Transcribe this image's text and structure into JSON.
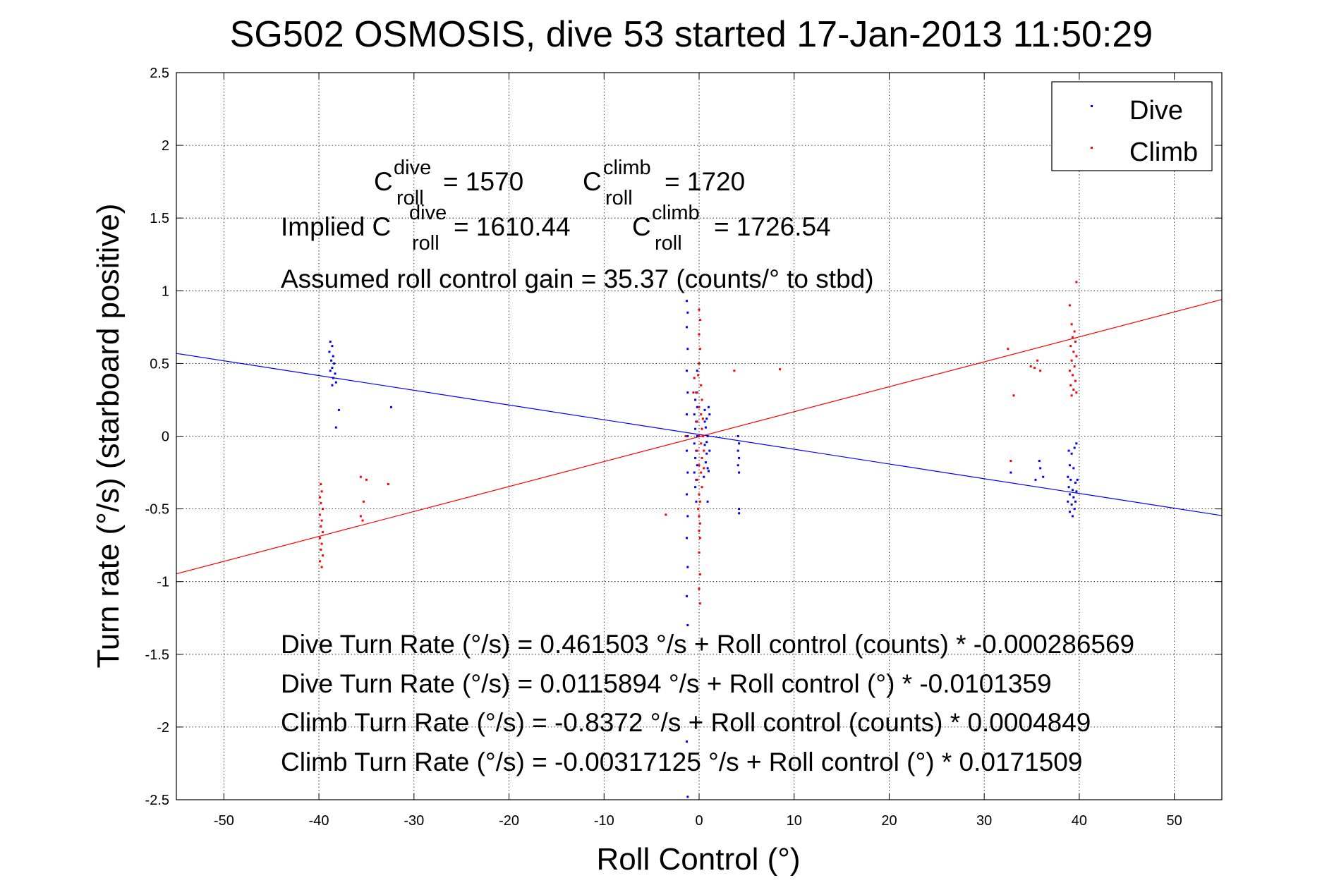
{
  "chart_data": {
    "type": "scatter",
    "title": "SG502 OSMOSIS, dive 53 started 17-Jan-2013 11:50:29",
    "xlabel": "Roll Control (°)",
    "ylabel": "Turn rate (°/s) (starboard positive)",
    "xlim": [
      -55,
      55
    ],
    "ylim": [
      -2.5,
      2.5
    ],
    "x_ticks": [
      -50,
      -40,
      -30,
      -20,
      -10,
      0,
      10,
      20,
      30,
      40,
      50
    ],
    "y_ticks": [
      -2.5,
      -2,
      -1.5,
      -1,
      -0.5,
      0,
      0.5,
      1,
      1.5,
      2,
      2.5
    ],
    "x_tick_labels": [
      "-50",
      "-40",
      "-30",
      "-20",
      "-10",
      "0",
      "10",
      "20",
      "30",
      "40",
      "50"
    ],
    "y_tick_labels": [
      "-2.5",
      "-2",
      "-1.5",
      "-1",
      "-0.5",
      "0",
      "0.5",
      "1",
      "1.5",
      "2",
      "2.5"
    ],
    "grid": true,
    "legend_position": "top-right",
    "series": [
      {
        "name": "Dive",
        "color": "#0000ff",
        "marker": "point",
        "points": [
          [
            -38.8,
            0.65
          ],
          [
            -38.6,
            0.62
          ],
          [
            -38.9,
            0.58
          ],
          [
            -38.5,
            0.55
          ],
          [
            -38.7,
            0.52
          ],
          [
            -38.4,
            0.5
          ],
          [
            -38.6,
            0.47
          ],
          [
            -38.8,
            0.45
          ],
          [
            -38.3,
            0.43
          ],
          [
            -38.5,
            0.4
          ],
          [
            -38.2,
            0.37
          ],
          [
            -38.6,
            0.35
          ],
          [
            -37.9,
            0.18
          ],
          [
            -38.2,
            0.06
          ],
          [
            -32.4,
            0.2
          ],
          [
            -1.3,
            0.93
          ],
          [
            -1.2,
            0.85
          ],
          [
            -1.3,
            0.75
          ],
          [
            -1.2,
            0.6
          ],
          [
            -1.3,
            0.45
          ],
          [
            -1.2,
            0.3
          ],
          [
            -1.3,
            0.15
          ],
          [
            -1.2,
            0.0
          ],
          [
            -1.3,
            -0.1
          ],
          [
            -1.2,
            -0.25
          ],
          [
            -1.3,
            -0.4
          ],
          [
            -1.2,
            -0.55
          ],
          [
            -1.3,
            -0.7
          ],
          [
            -1.2,
            -0.9
          ],
          [
            -1.3,
            -1.1
          ],
          [
            -1.2,
            -1.3
          ],
          [
            -1.3,
            -2.1
          ],
          [
            -1.2,
            -2.48
          ],
          [
            -0.3,
            0.3
          ],
          [
            -0.4,
            0.25
          ],
          [
            -0.2,
            0.2
          ],
          [
            -0.5,
            0.15
          ],
          [
            -0.3,
            0.1
          ],
          [
            -0.4,
            0.05
          ],
          [
            -0.2,
            0.0
          ],
          [
            -0.5,
            -0.05
          ],
          [
            -0.3,
            -0.1
          ],
          [
            -0.4,
            -0.15
          ],
          [
            -0.2,
            -0.2
          ],
          [
            -0.5,
            -0.25
          ],
          [
            -0.3,
            -0.3
          ],
          [
            -0.4,
            -0.35
          ],
          [
            -0.2,
            0.45
          ],
          [
            -0.3,
            -0.45
          ],
          [
            0.6,
            0.18
          ],
          [
            0.8,
            0.12
          ],
          [
            0.7,
            0.06
          ],
          [
            0.9,
            0.0
          ],
          [
            0.6,
            -0.06
          ],
          [
            0.8,
            -0.12
          ],
          [
            0.7,
            -0.18
          ],
          [
            0.9,
            -0.22
          ],
          [
            0.6,
            0.1
          ],
          [
            0.8,
            -0.04
          ],
          [
            1.0,
            0.2
          ],
          [
            1.0,
            -0.24
          ],
          [
            1.1,
            0.15
          ],
          [
            1.1,
            -0.1
          ],
          [
            0.5,
            -0.28
          ],
          [
            0.9,
            -0.45
          ],
          [
            4.1,
            0.0
          ],
          [
            4.2,
            -0.05
          ],
          [
            4.1,
            -0.1
          ],
          [
            4.2,
            -0.15
          ],
          [
            4.1,
            -0.2
          ],
          [
            4.2,
            -0.25
          ],
          [
            4.2,
            -0.5
          ],
          [
            4.2,
            -0.53
          ],
          [
            32.8,
            -0.25
          ],
          [
            35.4,
            -0.3
          ],
          [
            35.9,
            -0.22
          ],
          [
            36.2,
            -0.28
          ],
          [
            35.8,
            -0.17
          ],
          [
            38.9,
            -0.1
          ],
          [
            39.2,
            -0.12
          ],
          [
            39.5,
            -0.08
          ],
          [
            39.0,
            -0.2
          ],
          [
            39.4,
            -0.22
          ],
          [
            38.8,
            -0.28
          ],
          [
            39.1,
            -0.3
          ],
          [
            39.6,
            -0.32
          ],
          [
            38.9,
            -0.35
          ],
          [
            39.3,
            -0.37
          ],
          [
            39.7,
            -0.38
          ],
          [
            39.0,
            -0.4
          ],
          [
            39.4,
            -0.42
          ],
          [
            38.8,
            -0.45
          ],
          [
            39.2,
            -0.47
          ],
          [
            39.5,
            -0.5
          ],
          [
            39.0,
            -0.52
          ],
          [
            39.3,
            -0.55
          ],
          [
            39.6,
            -0.45
          ],
          [
            39.8,
            -0.3
          ],
          [
            39.7,
            -0.05
          ]
        ]
      },
      {
        "name": "Climb",
        "color": "#ff0000",
        "marker": "point",
        "points": [
          [
            -39.8,
            -0.33
          ],
          [
            -39.7,
            -0.38
          ],
          [
            -39.9,
            -0.42
          ],
          [
            -39.8,
            -0.46
          ],
          [
            -39.6,
            -0.5
          ],
          [
            -39.9,
            -0.54
          ],
          [
            -39.7,
            -0.58
          ],
          [
            -39.8,
            -0.62
          ],
          [
            -39.6,
            -0.66
          ],
          [
            -39.9,
            -0.7
          ],
          [
            -39.7,
            -0.74
          ],
          [
            -39.8,
            -0.78
          ],
          [
            -39.6,
            -0.82
          ],
          [
            -39.9,
            -0.86
          ],
          [
            -39.7,
            -0.9
          ],
          [
            -35.6,
            -0.28
          ],
          [
            -35.0,
            -0.3
          ],
          [
            -35.3,
            -0.45
          ],
          [
            -35.6,
            -0.55
          ],
          [
            -35.4,
            -0.58
          ],
          [
            -32.7,
            -0.33
          ],
          [
            -3.5,
            -0.54
          ],
          [
            -1.4,
            0.0
          ],
          [
            -0.6,
            0.3
          ],
          [
            -0.5,
            0.4
          ],
          [
            0.0,
            0.87
          ],
          [
            0.1,
            0.8
          ],
          [
            0.0,
            0.7
          ],
          [
            0.1,
            0.6
          ],
          [
            0.0,
            0.5
          ],
          [
            -0.1,
            0.42
          ],
          [
            0.2,
            0.35
          ],
          [
            -0.2,
            0.3
          ],
          [
            0.3,
            0.25
          ],
          [
            0.0,
            0.2
          ],
          [
            0.2,
            0.15
          ],
          [
            -0.2,
            0.1
          ],
          [
            0.3,
            0.05
          ],
          [
            0.0,
            0.0
          ],
          [
            0.2,
            -0.05
          ],
          [
            -0.2,
            -0.1
          ],
          [
            0.3,
            -0.15
          ],
          [
            0.0,
            -0.2
          ],
          [
            0.2,
            -0.25
          ],
          [
            -0.2,
            -0.3
          ],
          [
            0.3,
            -0.35
          ],
          [
            0.0,
            -0.4
          ],
          [
            0.1,
            -0.45
          ],
          [
            -0.1,
            -0.5
          ],
          [
            0.0,
            -0.55
          ],
          [
            0.1,
            -0.6
          ],
          [
            0.0,
            -0.65
          ],
          [
            0.1,
            -0.7
          ],
          [
            0.0,
            -0.8
          ],
          [
            0.1,
            -0.95
          ],
          [
            0.0,
            -1.05
          ],
          [
            0.1,
            -1.15
          ],
          [
            0.4,
            0.0
          ],
          [
            0.5,
            -0.1
          ],
          [
            0.4,
            0.12
          ],
          [
            0.5,
            -0.22
          ],
          [
            3.7,
            0.45
          ],
          [
            8.5,
            0.46
          ],
          [
            32.5,
            0.6
          ],
          [
            32.8,
            -0.17
          ],
          [
            33.1,
            0.28
          ],
          [
            34.9,
            0.48
          ],
          [
            35.3,
            0.47
          ],
          [
            35.6,
            0.52
          ],
          [
            35.9,
            0.45
          ],
          [
            39.0,
            0.9
          ],
          [
            39.2,
            0.77
          ],
          [
            39.5,
            0.72
          ],
          [
            39.3,
            0.68
          ],
          [
            39.6,
            0.65
          ],
          [
            39.1,
            0.62
          ],
          [
            39.4,
            0.58
          ],
          [
            39.7,
            0.55
          ],
          [
            39.2,
            0.52
          ],
          [
            39.5,
            0.48
          ],
          [
            39.0,
            0.45
          ],
          [
            39.3,
            0.42
          ],
          [
            39.6,
            0.38
          ],
          [
            39.1,
            0.35
          ],
          [
            39.4,
            0.32
          ],
          [
            39.7,
            0.3
          ],
          [
            39.2,
            0.28
          ],
          [
            39.7,
            1.06
          ]
        ]
      }
    ],
    "fit_lines": [
      {
        "name": "Dive fit",
        "color": "#0000ff",
        "intercept": 0.0115894,
        "slope": -0.0101359
      },
      {
        "name": "Climb fit",
        "color": "#ff0000",
        "intercept": -0.00317125,
        "slope": 0.0171509
      }
    ],
    "annotations": {
      "c_dive_base": "C",
      "c_dive_sup": "dive",
      "c_dive_sub": "roll",
      "c_dive_val": "= 1570",
      "c_climb_base": "C",
      "c_climb_sup": "climb",
      "c_climb_sub": "roll",
      "c_climb_val": "= 1720",
      "implied_prefix": "Implied C",
      "implied_dive_sup": "dive",
      "implied_dive_sub": "roll",
      "implied_dive_val": "= 1610.44",
      "implied_climb_base": "C",
      "implied_climb_sup": "climb",
      "implied_climb_sub": "roll",
      "implied_climb_val": "= 1726.54",
      "gain": "Assumed roll control gain = 35.37 (counts/° to stbd)",
      "eq1": "Dive Turn Rate (°/s) = 0.461503 °/s + Roll control (counts) * -0.000286569",
      "eq2": "Dive Turn Rate (°/s) = 0.0115894 °/s + Roll control (°) * -0.0101359",
      "eq3": "Climb Turn Rate (°/s) = -0.8372 °/s + Roll control (counts) * 0.0004849",
      "eq4": "Climb Turn Rate (°/s) = -0.00317125 °/s + Roll control (°) * 0.0171509"
    }
  }
}
